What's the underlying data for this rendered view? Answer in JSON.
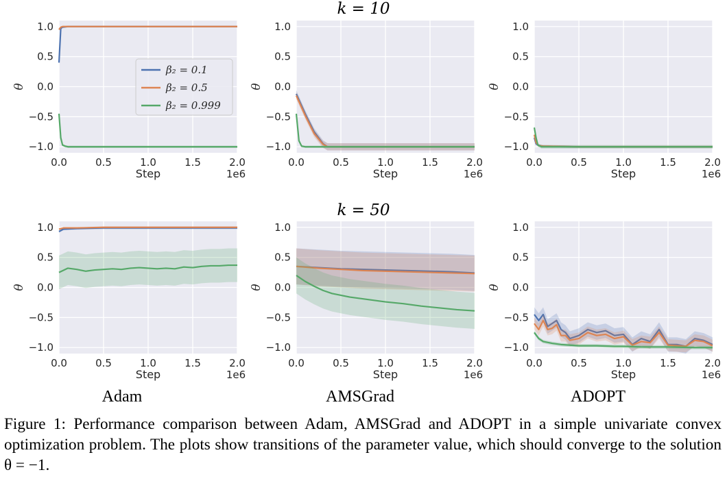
{
  "caption": {
    "label": "Figure 1:",
    "text": "Performance comparison between Adam, AMSGrad and ADOPT in a simple univariate convex optimization problem. The plots show transitions of the parameter value, which should converge to the solution θ = −1."
  },
  "column_titles": [
    "Adam",
    "AMSGrad",
    "ADOPT"
  ],
  "row_titles": [
    "k = 10",
    "k = 50"
  ],
  "colors": {
    "beta_0.1": "#4c72b0",
    "beta_0.5": "#dd8452",
    "beta_0.999": "#55a868",
    "panel_bg": "#eaeaf2",
    "grid": "#ffffff"
  },
  "legend": [
    "β₂ = 0.1",
    "β₂ = 0.5",
    "β₂ = 0.999"
  ],
  "chart_data": [
    {
      "type": "line",
      "row": "k = 10",
      "column": "Adam",
      "xlabel": "Step",
      "ylabel": "θ",
      "x_multiplier": "1e6",
      "xlim": [
        0,
        2.0
      ],
      "ylim": [
        -1.1,
        1.1
      ],
      "xticks": [
        "0.0",
        "0.5",
        "1.0",
        "1.5",
        "2.0"
      ],
      "yticks": [
        "−1.0",
        "−0.5",
        "0.0",
        "0.5",
        "1.0"
      ],
      "grid": true,
      "legend_position": "center-right",
      "series": [
        {
          "name": "β₂ = 0.1",
          "x": [
            0,
            0.02,
            0.04,
            0.1,
            0.5,
            1.0,
            1.5,
            2.0
          ],
          "y": [
            0.4,
            0.97,
            0.99,
            1.0,
            1.0,
            1.0,
            1.0,
            1.0
          ]
        },
        {
          "name": "β₂ = 0.5",
          "x": [
            0,
            0.02,
            0.04,
            0.1,
            0.5,
            1.0,
            1.5,
            2.0
          ],
          "y": [
            0.95,
            0.99,
            1.0,
            1.0,
            1.0,
            1.0,
            1.0,
            1.0
          ]
        },
        {
          "name": "β₂ = 0.999",
          "x": [
            0,
            0.02,
            0.04,
            0.07,
            0.1,
            0.5,
            1.0,
            1.5,
            2.0
          ],
          "y": [
            -0.45,
            -0.85,
            -0.97,
            -0.99,
            -1.0,
            -1.0,
            -1.0,
            -1.0,
            -1.0
          ]
        }
      ]
    },
    {
      "type": "line",
      "row": "k = 10",
      "column": "AMSGrad",
      "xlabel": "Step",
      "ylabel": "θ",
      "x_multiplier": "1e6",
      "xlim": [
        0,
        2.0
      ],
      "ylim": [
        -1.1,
        1.1
      ],
      "xticks": [
        "0.0",
        "0.5",
        "1.0",
        "1.5",
        "2.0"
      ],
      "yticks": [
        "−1.0",
        "−0.5",
        "0.0",
        "0.5",
        "1.0"
      ],
      "grid": true,
      "series": [
        {
          "name": "β₂ = 0.1",
          "x": [
            0,
            0.1,
            0.2,
            0.3,
            0.35,
            0.5,
            1.0,
            1.5,
            2.0
          ],
          "y": [
            -0.12,
            -0.45,
            -0.75,
            -0.95,
            -1.0,
            -1.0,
            -1.0,
            -1.0,
            -1.0
          ]
        },
        {
          "name": "β₂ = 0.5",
          "x": [
            0,
            0.1,
            0.2,
            0.3,
            0.35,
            0.5,
            1.0,
            1.5,
            2.0
          ],
          "y": [
            -0.15,
            -0.48,
            -0.78,
            -0.96,
            -1.0,
            -1.0,
            -1.0,
            -1.0,
            -1.0
          ]
        },
        {
          "name": "β₂ = 0.999",
          "x": [
            0,
            0.03,
            0.06,
            0.1,
            0.5,
            1.0,
            1.5,
            2.0
          ],
          "y": [
            -0.45,
            -0.9,
            -0.99,
            -1.0,
            -1.0,
            -1.0,
            -1.0,
            -1.0
          ]
        }
      ]
    },
    {
      "type": "line",
      "row": "k = 10",
      "column": "ADOPT",
      "xlabel": "Step",
      "ylabel": "θ",
      "x_multiplier": "1e6",
      "xlim": [
        0,
        2.0
      ],
      "ylim": [
        -1.1,
        1.1
      ],
      "xticks": [
        "0.0",
        "0.5",
        "1.0",
        "1.5",
        "2.0"
      ],
      "yticks": [
        "−1.0",
        "−0.5",
        "0.0",
        "0.5",
        "1.0"
      ],
      "grid": true,
      "series": [
        {
          "name": "β₂ = 0.1",
          "x": [
            0,
            0.02,
            0.05,
            0.1,
            0.5,
            1.0,
            1.5,
            2.0
          ],
          "y": [
            -0.85,
            -0.95,
            -0.98,
            -0.99,
            -1.0,
            -1.0,
            -1.0,
            -1.0
          ]
        },
        {
          "name": "β₂ = 0.5",
          "x": [
            0,
            0.02,
            0.05,
            0.1,
            0.5,
            1.0,
            1.5,
            2.0
          ],
          "y": [
            -0.8,
            -0.93,
            -0.98,
            -0.99,
            -1.0,
            -1.0,
            -1.0,
            -1.0
          ]
        },
        {
          "name": "β₂ = 0.999",
          "x": [
            0,
            0.02,
            0.04,
            0.08,
            0.5,
            1.0,
            1.5,
            2.0
          ],
          "y": [
            -0.68,
            -0.85,
            -0.97,
            -1.0,
            -1.0,
            -1.0,
            -1.0,
            -1.0
          ]
        }
      ]
    },
    {
      "type": "line",
      "row": "k = 50",
      "column": "Adam",
      "xlabel": "Step",
      "ylabel": "θ",
      "x_multiplier": "1e6",
      "xlim": [
        0,
        2.0
      ],
      "ylim": [
        -1.1,
        1.1
      ],
      "xticks": [
        "0.0",
        "0.5",
        "1.0",
        "1.5",
        "2.0"
      ],
      "yticks": [
        "−1.0",
        "−0.5",
        "0.0",
        "0.5",
        "1.0"
      ],
      "grid": true,
      "series": [
        {
          "name": "β₂ = 0.1",
          "x": [
            0,
            0.05,
            0.2,
            0.5,
            1.0,
            1.5,
            2.0
          ],
          "y": [
            0.93,
            0.97,
            0.98,
            0.99,
            0.99,
            0.99,
            0.99
          ]
        },
        {
          "name": "β₂ = 0.5",
          "x": [
            0,
            0.05,
            0.2,
            0.5,
            1.0,
            1.5,
            2.0
          ],
          "y": [
            0.97,
            0.99,
            0.99,
            1.0,
            1.0,
            1.0,
            1.0
          ]
        },
        {
          "name": "β₂ = 0.999",
          "x": [
            0,
            0.1,
            0.2,
            0.3,
            0.4,
            0.5,
            0.6,
            0.7,
            0.8,
            0.9,
            1.0,
            1.1,
            1.2,
            1.3,
            1.4,
            1.5,
            1.6,
            1.7,
            1.8,
            1.9,
            2.0
          ],
          "y": [
            0.25,
            0.32,
            0.3,
            0.27,
            0.29,
            0.3,
            0.31,
            0.3,
            0.32,
            0.33,
            0.32,
            0.31,
            0.32,
            0.31,
            0.34,
            0.33,
            0.35,
            0.36,
            0.36,
            0.37,
            0.37
          ]
        }
      ]
    },
    {
      "type": "line",
      "row": "k = 50",
      "column": "AMSGrad",
      "xlabel": "Step",
      "ylabel": "θ",
      "x_multiplier": "1e6",
      "xlim": [
        0,
        2.0
      ],
      "ylim": [
        -1.1,
        1.1
      ],
      "xticks": [
        "0.0",
        "0.5",
        "1.0",
        "1.5",
        "2.0"
      ],
      "yticks": [
        "−1.0",
        "−0.5",
        "0.0",
        "0.5",
        "1.0"
      ],
      "grid": true,
      "series": [
        {
          "name": "β₂ = 0.1",
          "x": [
            0,
            0.25,
            0.5,
            0.75,
            1.0,
            1.25,
            1.5,
            1.75,
            2.0
          ],
          "y": [
            0.35,
            0.33,
            0.31,
            0.3,
            0.29,
            0.28,
            0.27,
            0.26,
            0.24
          ]
        },
        {
          "name": "β₂ = 0.5",
          "x": [
            0,
            0.25,
            0.5,
            0.75,
            1.0,
            1.25,
            1.5,
            1.75,
            2.0
          ],
          "y": [
            0.35,
            0.32,
            0.3,
            0.28,
            0.27,
            0.26,
            0.25,
            0.24,
            0.23
          ]
        },
        {
          "name": "β₂ = 0.999",
          "x": [
            0,
            0.1,
            0.2,
            0.3,
            0.4,
            0.5,
            0.6,
            0.7,
            0.8,
            0.9,
            1.0,
            1.2,
            1.4,
            1.6,
            1.8,
            2.0
          ],
          "y": [
            0.2,
            0.1,
            0.02,
            -0.05,
            -0.1,
            -0.13,
            -0.16,
            -0.18,
            -0.2,
            -0.22,
            -0.24,
            -0.27,
            -0.31,
            -0.34,
            -0.37,
            -0.39
          ]
        }
      ]
    },
    {
      "type": "line",
      "row": "k = 50",
      "column": "ADOPT",
      "xlabel": "Step",
      "ylabel": "θ",
      "x_multiplier": "1e6",
      "xlim": [
        0,
        2.0
      ],
      "ylim": [
        -1.1,
        1.1
      ],
      "xticks": [
        "0.0",
        "0.5",
        "1.0",
        "1.5",
        "2.0"
      ],
      "yticks": [
        "−1.0",
        "−0.5",
        "0.0",
        "0.5",
        "1.0"
      ],
      "grid": true,
      "series": [
        {
          "name": "β₂ = 0.1",
          "x": [
            0,
            0.05,
            0.1,
            0.15,
            0.2,
            0.25,
            0.3,
            0.35,
            0.4,
            0.5,
            0.6,
            0.7,
            0.8,
            0.9,
            1.0,
            1.1,
            1.2,
            1.3,
            1.4,
            1.5,
            1.6,
            1.7,
            1.8,
            1.9,
            2.0
          ],
          "y": [
            -0.45,
            -0.55,
            -0.45,
            -0.65,
            -0.6,
            -0.55,
            -0.7,
            -0.75,
            -0.85,
            -0.8,
            -0.7,
            -0.75,
            -0.72,
            -0.8,
            -0.78,
            -0.95,
            -0.85,
            -0.9,
            -0.7,
            -0.95,
            -0.95,
            -0.98,
            -0.85,
            -0.88,
            -0.95
          ]
        },
        {
          "name": "β₂ = 0.5",
          "x": [
            0,
            0.05,
            0.1,
            0.15,
            0.2,
            0.25,
            0.3,
            0.35,
            0.4,
            0.5,
            0.6,
            0.7,
            0.8,
            0.9,
            1.0,
            1.1,
            1.2,
            1.3,
            1.4,
            1.5,
            1.6,
            1.7,
            1.8,
            1.9,
            2.0
          ],
          "y": [
            -0.6,
            -0.7,
            -0.55,
            -0.7,
            -0.68,
            -0.62,
            -0.8,
            -0.8,
            -0.88,
            -0.85,
            -0.75,
            -0.8,
            -0.78,
            -0.85,
            -0.82,
            -0.96,
            -0.9,
            -0.92,
            -0.75,
            -0.96,
            -0.97,
            -0.98,
            -0.88,
            -0.9,
            -0.97
          ]
        },
        {
          "name": "β₂ = 0.999",
          "x": [
            0,
            0.05,
            0.1,
            0.2,
            0.3,
            0.5,
            0.7,
            0.9,
            1.0,
            1.2,
            1.5,
            1.8,
            2.0
          ],
          "y": [
            -0.75,
            -0.85,
            -0.9,
            -0.93,
            -0.95,
            -0.97,
            -0.97,
            -0.98,
            -0.98,
            -0.99,
            -0.99,
            -1.0,
            -1.0
          ]
        }
      ]
    }
  ]
}
